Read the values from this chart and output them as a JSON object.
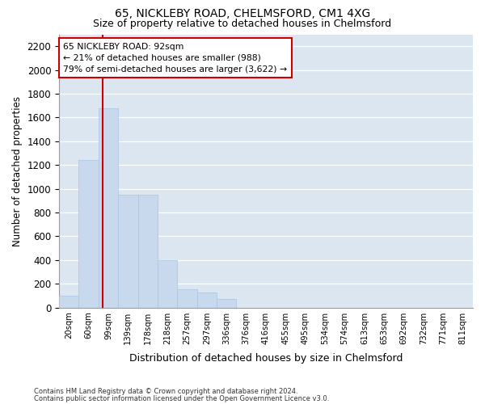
{
  "title1": "65, NICKLEBY ROAD, CHELMSFORD, CM1 4XG",
  "title2": "Size of property relative to detached houses in Chelmsford",
  "xlabel": "Distribution of detached houses by size in Chelmsford",
  "ylabel": "Number of detached properties",
  "footer1": "Contains HM Land Registry data © Crown copyright and database right 2024.",
  "footer2": "Contains public sector information licensed under the Open Government Licence v3.0.",
  "annotation_line1": "65 NICKLEBY ROAD: 92sqm",
  "annotation_line2": "← 21% of detached houses are smaller (988)",
  "annotation_line3": "79% of semi-detached houses are larger (3,622) →",
  "bar_color": "#c8d9ee",
  "bar_edge_color": "#aac4e0",
  "vline_color": "#cc0000",
  "annotation_box_color": "#cc0000",
  "bg_color": "#dce6f1",
  "categories": [
    "20sqm",
    "60sqm",
    "99sqm",
    "139sqm",
    "178sqm",
    "218sqm",
    "257sqm",
    "297sqm",
    "336sqm",
    "376sqm",
    "416sqm",
    "455sqm",
    "495sqm",
    "534sqm",
    "574sqm",
    "613sqm",
    "653sqm",
    "692sqm",
    "732sqm",
    "771sqm",
    "811sqm"
  ],
  "values": [
    100,
    1240,
    1680,
    950,
    950,
    400,
    155,
    125,
    70,
    0,
    0,
    0,
    0,
    0,
    0,
    0,
    0,
    0,
    0,
    0,
    0
  ],
  "ylim": [
    0,
    2300
  ],
  "vline_x": 1.72,
  "yticks": [
    0,
    200,
    400,
    600,
    800,
    1000,
    1200,
    1400,
    1600,
    1800,
    2000,
    2200
  ]
}
